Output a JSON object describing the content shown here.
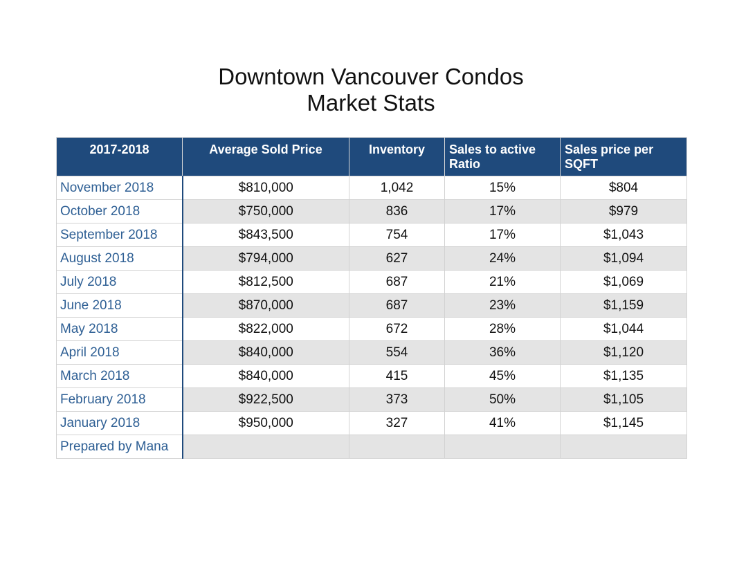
{
  "title": {
    "line1": "Downtown Vancouver Condos",
    "line2": "Market Stats"
  },
  "table": {
    "headers": [
      "2017-2018",
      "Average Sold Price",
      "Inventory",
      "Sales to active Ratio",
      "Sales price per SQFT"
    ],
    "rows": [
      {
        "month": "November 2018",
        "price": "$810,000",
        "inventory": "1,042",
        "ratio": "15%",
        "sqft": "$804"
      },
      {
        "month": "October 2018",
        "price": "$750,000",
        "inventory": "836",
        "ratio": "17%",
        "sqft": "$979"
      },
      {
        "month": "September 2018",
        "price": "$843,500",
        "inventory": "754",
        "ratio": "17%",
        "sqft": "$1,043"
      },
      {
        "month": "August 2018",
        "price": "$794,000",
        "inventory": "627",
        "ratio": "24%",
        "sqft": "$1,094"
      },
      {
        "month": "July 2018",
        "price": "$812,500",
        "inventory": "687",
        "ratio": "21%",
        "sqft": "$1,069"
      },
      {
        "month": "June 2018",
        "price": "$870,000",
        "inventory": "687",
        "ratio": "23%",
        "sqft": "$1,159"
      },
      {
        "month": "May 2018",
        "price": "$822,000",
        "inventory": "672",
        "ratio": "28%",
        "sqft": "$1,044"
      },
      {
        "month": "April 2018",
        "price": "$840,000",
        "inventory": "554",
        "ratio": "36%",
        "sqft": "$1,120"
      },
      {
        "month": "March 2018",
        "price": "$840,000",
        "inventory": "415",
        "ratio": "45%",
        "sqft": "$1,135"
      },
      {
        "month": "February 2018",
        "price": "$922,500",
        "inventory": "373",
        "ratio": "50%",
        "sqft": "$1,105"
      },
      {
        "month": "January 2018",
        "price": "$950,000",
        "inventory": "327",
        "ratio": "41%",
        "sqft": "$1,145"
      }
    ],
    "footer": "Prepared by Mana"
  }
}
